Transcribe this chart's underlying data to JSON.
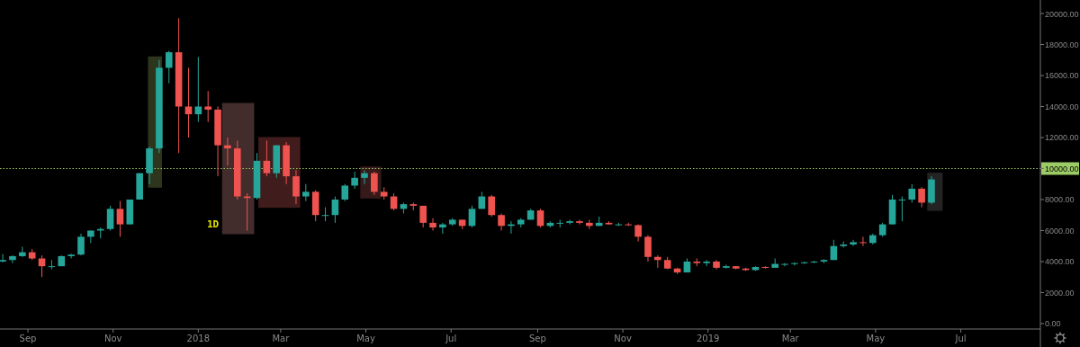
{
  "chart_data": {
    "type": "candlestick",
    "annotations": [
      "1D"
    ],
    "x": [
      "2017-08-14",
      "2017-08-21",
      "2017-08-28",
      "2017-09-04",
      "2017-09-11",
      "2017-09-18",
      "2017-09-25",
      "2017-10-02",
      "2017-10-09",
      "2017-10-16",
      "2017-10-23",
      "2017-10-30",
      "2017-11-06",
      "2017-11-13",
      "2017-11-20",
      "2017-11-27",
      "2017-12-04",
      "2017-12-11",
      "2017-12-18",
      "2017-12-25",
      "2018-01-01",
      "2018-01-08",
      "2018-01-15",
      "2018-01-22",
      "2018-01-29",
      "2018-02-05",
      "2018-02-12",
      "2018-02-19",
      "2018-02-26",
      "2018-03-05",
      "2018-03-12",
      "2018-03-19",
      "2018-03-26",
      "2018-04-02",
      "2018-04-09",
      "2018-04-16",
      "2018-04-23",
      "2018-04-30",
      "2018-05-07",
      "2018-05-14",
      "2018-05-21",
      "2018-05-28",
      "2018-06-04",
      "2018-06-11",
      "2018-06-18",
      "2018-06-25",
      "2018-07-02",
      "2018-07-09",
      "2018-07-16",
      "2018-07-23",
      "2018-07-30",
      "2018-08-06",
      "2018-08-13",
      "2018-08-20",
      "2018-08-27",
      "2018-09-03",
      "2018-09-10",
      "2018-09-17",
      "2018-09-24",
      "2018-10-01",
      "2018-10-08",
      "2018-10-15",
      "2018-10-22",
      "2018-10-29",
      "2018-11-05",
      "2018-11-12",
      "2018-11-19",
      "2018-11-26",
      "2018-12-03",
      "2018-12-10",
      "2018-12-17",
      "2018-12-24",
      "2018-12-31",
      "2019-01-07",
      "2019-01-14",
      "2019-01-21",
      "2019-01-28",
      "2019-02-04",
      "2019-02-11",
      "2019-02-18",
      "2019-02-25",
      "2019-03-04",
      "2019-03-11",
      "2019-03-18",
      "2019-03-25",
      "2019-04-01",
      "2019-04-08",
      "2019-04-15",
      "2019-04-22",
      "2019-04-29",
      "2019-05-06",
      "2019-05-13",
      "2019-05-20",
      "2019-05-27",
      "2019-06-03",
      "2019-06-10"
    ],
    "ohlc": [
      [
        4000,
        4480,
        3950,
        4100
      ],
      [
        4100,
        4400,
        3900,
        4350
      ],
      [
        4350,
        4950,
        4300,
        4600
      ],
      [
        4600,
        4800,
        4100,
        4200
      ],
      [
        4200,
        4400,
        3000,
        3700
      ],
      [
        3700,
        4100,
        3500,
        3700
      ],
      [
        3700,
        4400,
        3700,
        4350
      ],
      [
        4350,
        4500,
        4200,
        4450
      ],
      [
        4450,
        5800,
        4400,
        5600
      ],
      [
        5600,
        6000,
        5200,
        6000
      ],
      [
        6000,
        6200,
        5500,
        6100
      ],
      [
        6100,
        7600,
        6000,
        7400
      ],
      [
        7400,
        7900,
        5600,
        6400
      ],
      [
        6400,
        8000,
        6400,
        8000
      ],
      [
        8000,
        9700,
        8000,
        9700
      ],
      [
        9700,
        11400,
        9000,
        11300
      ],
      [
        11300,
        17000,
        11000,
        16500
      ],
      [
        16500,
        17600,
        15500,
        17500
      ],
      [
        17500,
        19700,
        11000,
        14000
      ],
      [
        14000,
        16500,
        12000,
        13500
      ],
      [
        13500,
        17200,
        13000,
        14000
      ],
      [
        14000,
        15000,
        13000,
        13800
      ],
      [
        13800,
        14000,
        9500,
        11500
      ],
      [
        11500,
        12000,
        10200,
        11300
      ],
      [
        11300,
        11800,
        8000,
        8200
      ],
      [
        8200,
        8400,
        6000,
        8100
      ],
      [
        8100,
        11000,
        8000,
        10500
      ],
      [
        10500,
        11800,
        9500,
        9700
      ],
      [
        9700,
        11500,
        9400,
        11500
      ],
      [
        11500,
        11700,
        9000,
        9500
      ],
      [
        9500,
        9900,
        7700,
        8200
      ],
      [
        8200,
        9000,
        7900,
        8500
      ],
      [
        8500,
        8600,
        6600,
        7000
      ],
      [
        7000,
        7500,
        6600,
        7000
      ],
      [
        7000,
        8200,
        6500,
        8000
      ],
      [
        8000,
        9000,
        7900,
        8900
      ],
      [
        8900,
        9800,
        8700,
        9400
      ],
      [
        9400,
        9900,
        9000,
        9700
      ],
      [
        9700,
        9800,
        8300,
        8500
      ],
      [
        8500,
        8800,
        8000,
        8200
      ],
      [
        8200,
        8400,
        7300,
        7400
      ],
      [
        7400,
        7800,
        7100,
        7700
      ],
      [
        7700,
        7800,
        7300,
        7600
      ],
      [
        7600,
        7600,
        6200,
        6500
      ],
      [
        6500,
        6800,
        6000,
        6200
      ],
      [
        6200,
        6500,
        5800,
        6400
      ],
      [
        6400,
        6800,
        6300,
        6700
      ],
      [
        6700,
        6700,
        6100,
        6300
      ],
      [
        6300,
        7600,
        6200,
        7400
      ],
      [
        7400,
        8500,
        7400,
        8200
      ],
      [
        8200,
        8300,
        6900,
        7000
      ],
      [
        7000,
        7100,
        6000,
        6300
      ],
      [
        6300,
        6600,
        5800,
        6400
      ],
      [
        6400,
        6800,
        6200,
        6700
      ],
      [
        6700,
        7400,
        6700,
        7300
      ],
      [
        7300,
        7400,
        6200,
        6300
      ],
      [
        6300,
        6600,
        6200,
        6500
      ],
      [
        6500,
        6700,
        6200,
        6500
      ],
      [
        6500,
        6700,
        6400,
        6600
      ],
      [
        6600,
        6700,
        6400,
        6500
      ],
      [
        6500,
        6700,
        6100,
        6300
      ],
      [
        6300,
        6900,
        6300,
        6500
      ],
      [
        6500,
        6600,
        6400,
        6400
      ],
      [
        6400,
        6500,
        6300,
        6400
      ],
      [
        6400,
        6500,
        6300,
        6350
      ],
      [
        6350,
        6400,
        5300,
        5600
      ],
      [
        5600,
        5700,
        4000,
        4300
      ],
      [
        4300,
        4400,
        3600,
        4100
      ],
      [
        4100,
        4300,
        3500,
        3550
      ],
      [
        3550,
        3600,
        3200,
        3300
      ],
      [
        3300,
        4200,
        3300,
        4000
      ],
      [
        4000,
        4200,
        3700,
        3900
      ],
      [
        3900,
        4100,
        3700,
        4000
      ],
      [
        4000,
        4100,
        3500,
        3600
      ],
      [
        3600,
        3800,
        3550,
        3700
      ],
      [
        3700,
        3700,
        3500,
        3550
      ],
      [
        3550,
        3600,
        3400,
        3450
      ],
      [
        3450,
        3700,
        3400,
        3650
      ],
      [
        3650,
        3700,
        3550,
        3600
      ],
      [
        3600,
        4200,
        3600,
        3850
      ],
      [
        3850,
        3900,
        3700,
        3850
      ],
      [
        3850,
        3950,
        3750,
        3900
      ],
      [
        3900,
        4000,
        3850,
        3950
      ],
      [
        3950,
        4050,
        3900,
        4000
      ],
      [
        4000,
        4150,
        3900,
        4100
      ],
      [
        4100,
        5400,
        4100,
        5000
      ],
      [
        5000,
        5300,
        4900,
        5100
      ],
      [
        5100,
        5400,
        5000,
        5250
      ],
      [
        5250,
        5600,
        5000,
        5200
      ],
      [
        5200,
        5800,
        5100,
        5700
      ],
      [
        5700,
        6500,
        5600,
        6400
      ],
      [
        6400,
        8300,
        6400,
        8000
      ],
      [
        8000,
        8200,
        6600,
        8000
      ],
      [
        8000,
        9000,
        7800,
        8700
      ],
      [
        8700,
        8800,
        7500,
        7800
      ],
      [
        7800,
        9500,
        7700,
        9300
      ]
    ],
    "xlim": [
      "2017-08-12",
      "2019-08-27"
    ],
    "xticks": [
      {
        "value": "2017-09-01",
        "label": "Sep"
      },
      {
        "value": "2017-11-01",
        "label": "Nov"
      },
      {
        "value": "2018-01-01",
        "label": "2018"
      },
      {
        "value": "2018-03-01",
        "label": "Mar"
      },
      {
        "value": "2018-05-01",
        "label": "May"
      },
      {
        "value": "2018-07-01",
        "label": "Jul"
      },
      {
        "value": "2018-09-01",
        "label": "Sep"
      },
      {
        "value": "2018-11-01",
        "label": "Nov"
      },
      {
        "value": "2019-01-01",
        "label": "2019"
      },
      {
        "value": "2019-03-01",
        "label": "Mar"
      },
      {
        "value": "2019-05-01",
        "label": "May"
      },
      {
        "value": "2019-07-01",
        "label": "Jul"
      }
    ],
    "ylim": [
      -350,
      20870
    ],
    "yticks": [
      {
        "value": 0,
        "label": "0.00"
      },
      {
        "value": 2000,
        "label": "2000.00"
      },
      {
        "value": 4000,
        "label": "4000.00"
      },
      {
        "value": 6000,
        "label": "6000.00"
      },
      {
        "value": 8000,
        "label": "8000.00"
      },
      {
        "value": 10000,
        "label": "10000.00"
      },
      {
        "value": 12000,
        "label": "12000.00"
      },
      {
        "value": 14000,
        "label": "14000.00"
      },
      {
        "value": 16000,
        "label": "16000.00"
      },
      {
        "value": 18000,
        "label": "18000.00"
      },
      {
        "value": 20000,
        "label": "20000.00"
      }
    ],
    "ref_lines": [
      {
        "axis": "y",
        "value": 10000,
        "color": "#9ccc65",
        "line_style": "dotted"
      }
    ],
    "bands": [
      {
        "axis": "x",
        "from": "2017-11-26",
        "to": "2017-12-06",
        "color": "#4b5a2e"
      },
      {
        "axis": "x",
        "from": "2018-01-18",
        "to": "2018-02-10",
        "color": "#6e4a4a"
      },
      {
        "axis": "x",
        "from": "2018-02-13",
        "to": "2018-03-15",
        "color": "#6a2e2e"
      },
      {
        "axis": "x",
        "from": "2018-04-27",
        "to": "2018-05-12",
        "color": "#5a2c2c"
      },
      {
        "axis": "x",
        "from": "2019-06-07",
        "to": "2019-06-18",
        "color": "#3a3a3a"
      }
    ],
    "grid": false
  }
}
